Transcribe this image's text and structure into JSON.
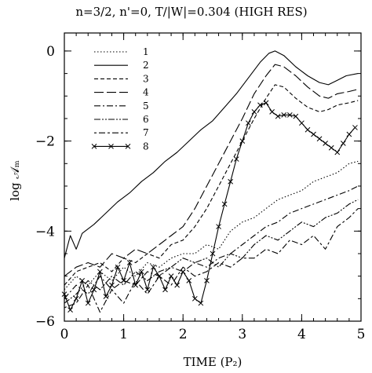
{
  "chart_data": {
    "type": "line",
    "title": "n=3/2, n'=0, T/|W|=0.304 (HIGH RES)",
    "xlabel": "TIME (P₂)",
    "ylabel": "log 𝒜ₘ",
    "xlim": [
      0,
      5
    ],
    "ylim": [
      -6,
      0.4
    ],
    "xticks": [
      0,
      1,
      2,
      3,
      4,
      5
    ],
    "xtick_labels": [
      "0",
      "1",
      "2",
      "3",
      "4",
      "5"
    ],
    "yticks": [
      -6,
      -4,
      -2,
      0
    ],
    "ytick_labels": [
      "−6",
      "−4",
      "−2",
      "0"
    ],
    "grid": false,
    "legend_position": "top-left",
    "series": [
      {
        "name": "1",
        "dash": "1.5,2.5",
        "x": [
          0,
          0.2,
          0.4,
          0.6,
          0.8,
          1.0,
          1.2,
          1.4,
          1.6,
          1.8,
          2.0,
          2.2,
          2.4,
          2.6,
          2.8,
          3.0,
          3.2,
          3.4,
          3.6,
          3.8,
          4.0,
          4.2,
          4.4,
          4.6,
          4.8,
          4.95
        ],
        "y": [
          -5.3,
          -5.0,
          -5.2,
          -4.9,
          -5.1,
          -4.8,
          -5.0,
          -4.7,
          -4.8,
          -4.6,
          -4.5,
          -4.5,
          -4.3,
          -4.4,
          -4.0,
          -3.8,
          -3.7,
          -3.5,
          -3.3,
          -3.2,
          -3.1,
          -2.9,
          -2.8,
          -2.7,
          -2.5,
          -2.45
        ]
      },
      {
        "name": "2",
        "dash": "",
        "x": [
          0,
          0.1,
          0.2,
          0.3,
          0.5,
          0.7,
          0.9,
          1.1,
          1.3,
          1.5,
          1.7,
          1.9,
          2.1,
          2.3,
          2.5,
          2.7,
          2.9,
          3.1,
          3.3,
          3.45,
          3.55,
          3.7,
          3.9,
          4.1,
          4.3,
          4.45,
          4.6,
          4.75,
          4.95
        ],
        "y": [
          -4.6,
          -4.1,
          -4.4,
          -4.05,
          -3.85,
          -3.6,
          -3.35,
          -3.15,
          -2.9,
          -2.7,
          -2.45,
          -2.25,
          -2.0,
          -1.75,
          -1.55,
          -1.25,
          -0.95,
          -0.6,
          -0.25,
          -0.05,
          0.0,
          -0.1,
          -0.35,
          -0.55,
          -0.7,
          -0.75,
          -0.65,
          -0.55,
          -0.5
        ]
      },
      {
        "name": "3",
        "dash": "5,3",
        "x": [
          0,
          0.2,
          0.4,
          0.6,
          0.8,
          1.0,
          1.2,
          1.4,
          1.6,
          1.8,
          2.0,
          2.2,
          2.4,
          2.6,
          2.8,
          3.0,
          3.2,
          3.4,
          3.55,
          3.7,
          3.9,
          4.1,
          4.3,
          4.45,
          4.6,
          4.8,
          4.95
        ],
        "y": [
          -5.2,
          -4.9,
          -4.8,
          -4.7,
          -4.9,
          -4.6,
          -4.7,
          -4.5,
          -4.6,
          -4.3,
          -4.2,
          -3.9,
          -3.5,
          -3.0,
          -2.5,
          -2.0,
          -1.5,
          -1.05,
          -0.75,
          -0.8,
          -1.05,
          -1.25,
          -1.35,
          -1.3,
          -1.2,
          -1.15,
          -1.1
        ]
      },
      {
        "name": "4",
        "dash": "12,4",
        "x": [
          0,
          0.2,
          0.4,
          0.6,
          0.8,
          1.0,
          1.2,
          1.4,
          1.6,
          1.8,
          2.0,
          2.2,
          2.4,
          2.6,
          2.8,
          3.0,
          3.2,
          3.4,
          3.55,
          3.7,
          3.9,
          4.1,
          4.3,
          4.45,
          4.6,
          4.8,
          4.95
        ],
        "y": [
          -5.0,
          -4.8,
          -4.7,
          -4.8,
          -4.5,
          -4.6,
          -4.4,
          -4.5,
          -4.3,
          -4.1,
          -3.9,
          -3.5,
          -3.0,
          -2.5,
          -2.0,
          -1.5,
          -0.95,
          -0.55,
          -0.3,
          -0.35,
          -0.55,
          -0.8,
          -1.0,
          -1.05,
          -0.95,
          -0.9,
          -0.85
        ]
      },
      {
        "name": "5",
        "dash": "8,3,2,3",
        "x": [
          0,
          0.2,
          0.4,
          0.6,
          0.8,
          1.0,
          1.2,
          1.4,
          1.6,
          1.8,
          2.0,
          2.2,
          2.4,
          2.6,
          2.8,
          3.0,
          3.2,
          3.4,
          3.6,
          3.8,
          4.0,
          4.2,
          4.4,
          4.6,
          4.8,
          4.95
        ],
        "y": [
          -5.5,
          -5.2,
          -5.4,
          -5.0,
          -5.3,
          -5.1,
          -5.2,
          -4.9,
          -5.0,
          -4.8,
          -4.9,
          -4.7,
          -4.8,
          -4.6,
          -4.5,
          -4.3,
          -4.1,
          -3.9,
          -3.8,
          -3.6,
          -3.5,
          -3.4,
          -3.3,
          -3.2,
          -3.1,
          -3.0
        ]
      },
      {
        "name": "6",
        "dash": "8,2,2,2,2,2",
        "x": [
          0,
          0.2,
          0.4,
          0.6,
          0.8,
          1.0,
          1.2,
          1.4,
          1.6,
          1.8,
          2.0,
          2.2,
          2.4,
          2.6,
          2.8,
          3.0,
          3.2,
          3.4,
          3.6,
          3.8,
          4.0,
          4.2,
          4.4,
          4.6,
          4.8,
          4.95
        ],
        "y": [
          -5.6,
          -5.4,
          -5.1,
          -5.3,
          -5.0,
          -5.2,
          -4.9,
          -5.1,
          -4.9,
          -4.8,
          -4.6,
          -4.7,
          -4.6,
          -4.8,
          -4.5,
          -4.6,
          -4.3,
          -4.1,
          -4.2,
          -4.0,
          -3.8,
          -3.9,
          -3.7,
          -3.6,
          -3.4,
          -3.3
        ]
      },
      {
        "name": "7",
        "dash": "3,3,8,3",
        "x": [
          0,
          0.2,
          0.4,
          0.6,
          0.8,
          1.0,
          1.2,
          1.4,
          1.6,
          1.8,
          2.0,
          2.2,
          2.4,
          2.6,
          2.8,
          3.0,
          3.2,
          3.4,
          3.6,
          3.8,
          4.0,
          4.2,
          4.4,
          4.6,
          4.8,
          4.95
        ],
        "y": [
          -5.7,
          -5.6,
          -5.2,
          -5.8,
          -5.3,
          -5.6,
          -5.1,
          -5.4,
          -5.0,
          -5.2,
          -4.8,
          -5.0,
          -4.9,
          -4.7,
          -4.8,
          -4.6,
          -4.6,
          -4.4,
          -4.5,
          -4.2,
          -4.3,
          -4.1,
          -4.4,
          -3.9,
          -3.7,
          -3.5
        ]
      },
      {
        "name": "8",
        "dash": "",
        "markers": true,
        "x": [
          0,
          0.1,
          0.2,
          0.3,
          0.4,
          0.5,
          0.6,
          0.7,
          0.8,
          0.9,
          1.0,
          1.1,
          1.2,
          1.3,
          1.4,
          1.5,
          1.6,
          1.7,
          1.8,
          1.9,
          2.0,
          2.1,
          2.2,
          2.3,
          2.4,
          2.5,
          2.6,
          2.7,
          2.8,
          2.9,
          3.0,
          3.1,
          3.2,
          3.3,
          3.4,
          3.5,
          3.6,
          3.7,
          3.8,
          3.9,
          4.0,
          4.1,
          4.2,
          4.3,
          4.4,
          4.5,
          4.6,
          4.7,
          4.8,
          4.9
        ],
        "y": [
          -5.4,
          -5.75,
          -5.5,
          -5.1,
          -5.6,
          -5.3,
          -4.9,
          -5.45,
          -5.2,
          -4.8,
          -5.1,
          -4.7,
          -5.2,
          -4.9,
          -5.3,
          -4.8,
          -5.0,
          -5.3,
          -5.0,
          -5.2,
          -4.9,
          -5.1,
          -5.5,
          -5.6,
          -5.1,
          -4.5,
          -3.9,
          -3.4,
          -2.9,
          -2.4,
          -2.0,
          -1.6,
          -1.35,
          -1.2,
          -1.15,
          -1.35,
          -1.45,
          -1.42,
          -1.42,
          -1.45,
          -1.6,
          -1.75,
          -1.85,
          -1.95,
          -2.05,
          -2.15,
          -2.25,
          -2.05,
          -1.85,
          -1.7
        ]
      }
    ]
  }
}
